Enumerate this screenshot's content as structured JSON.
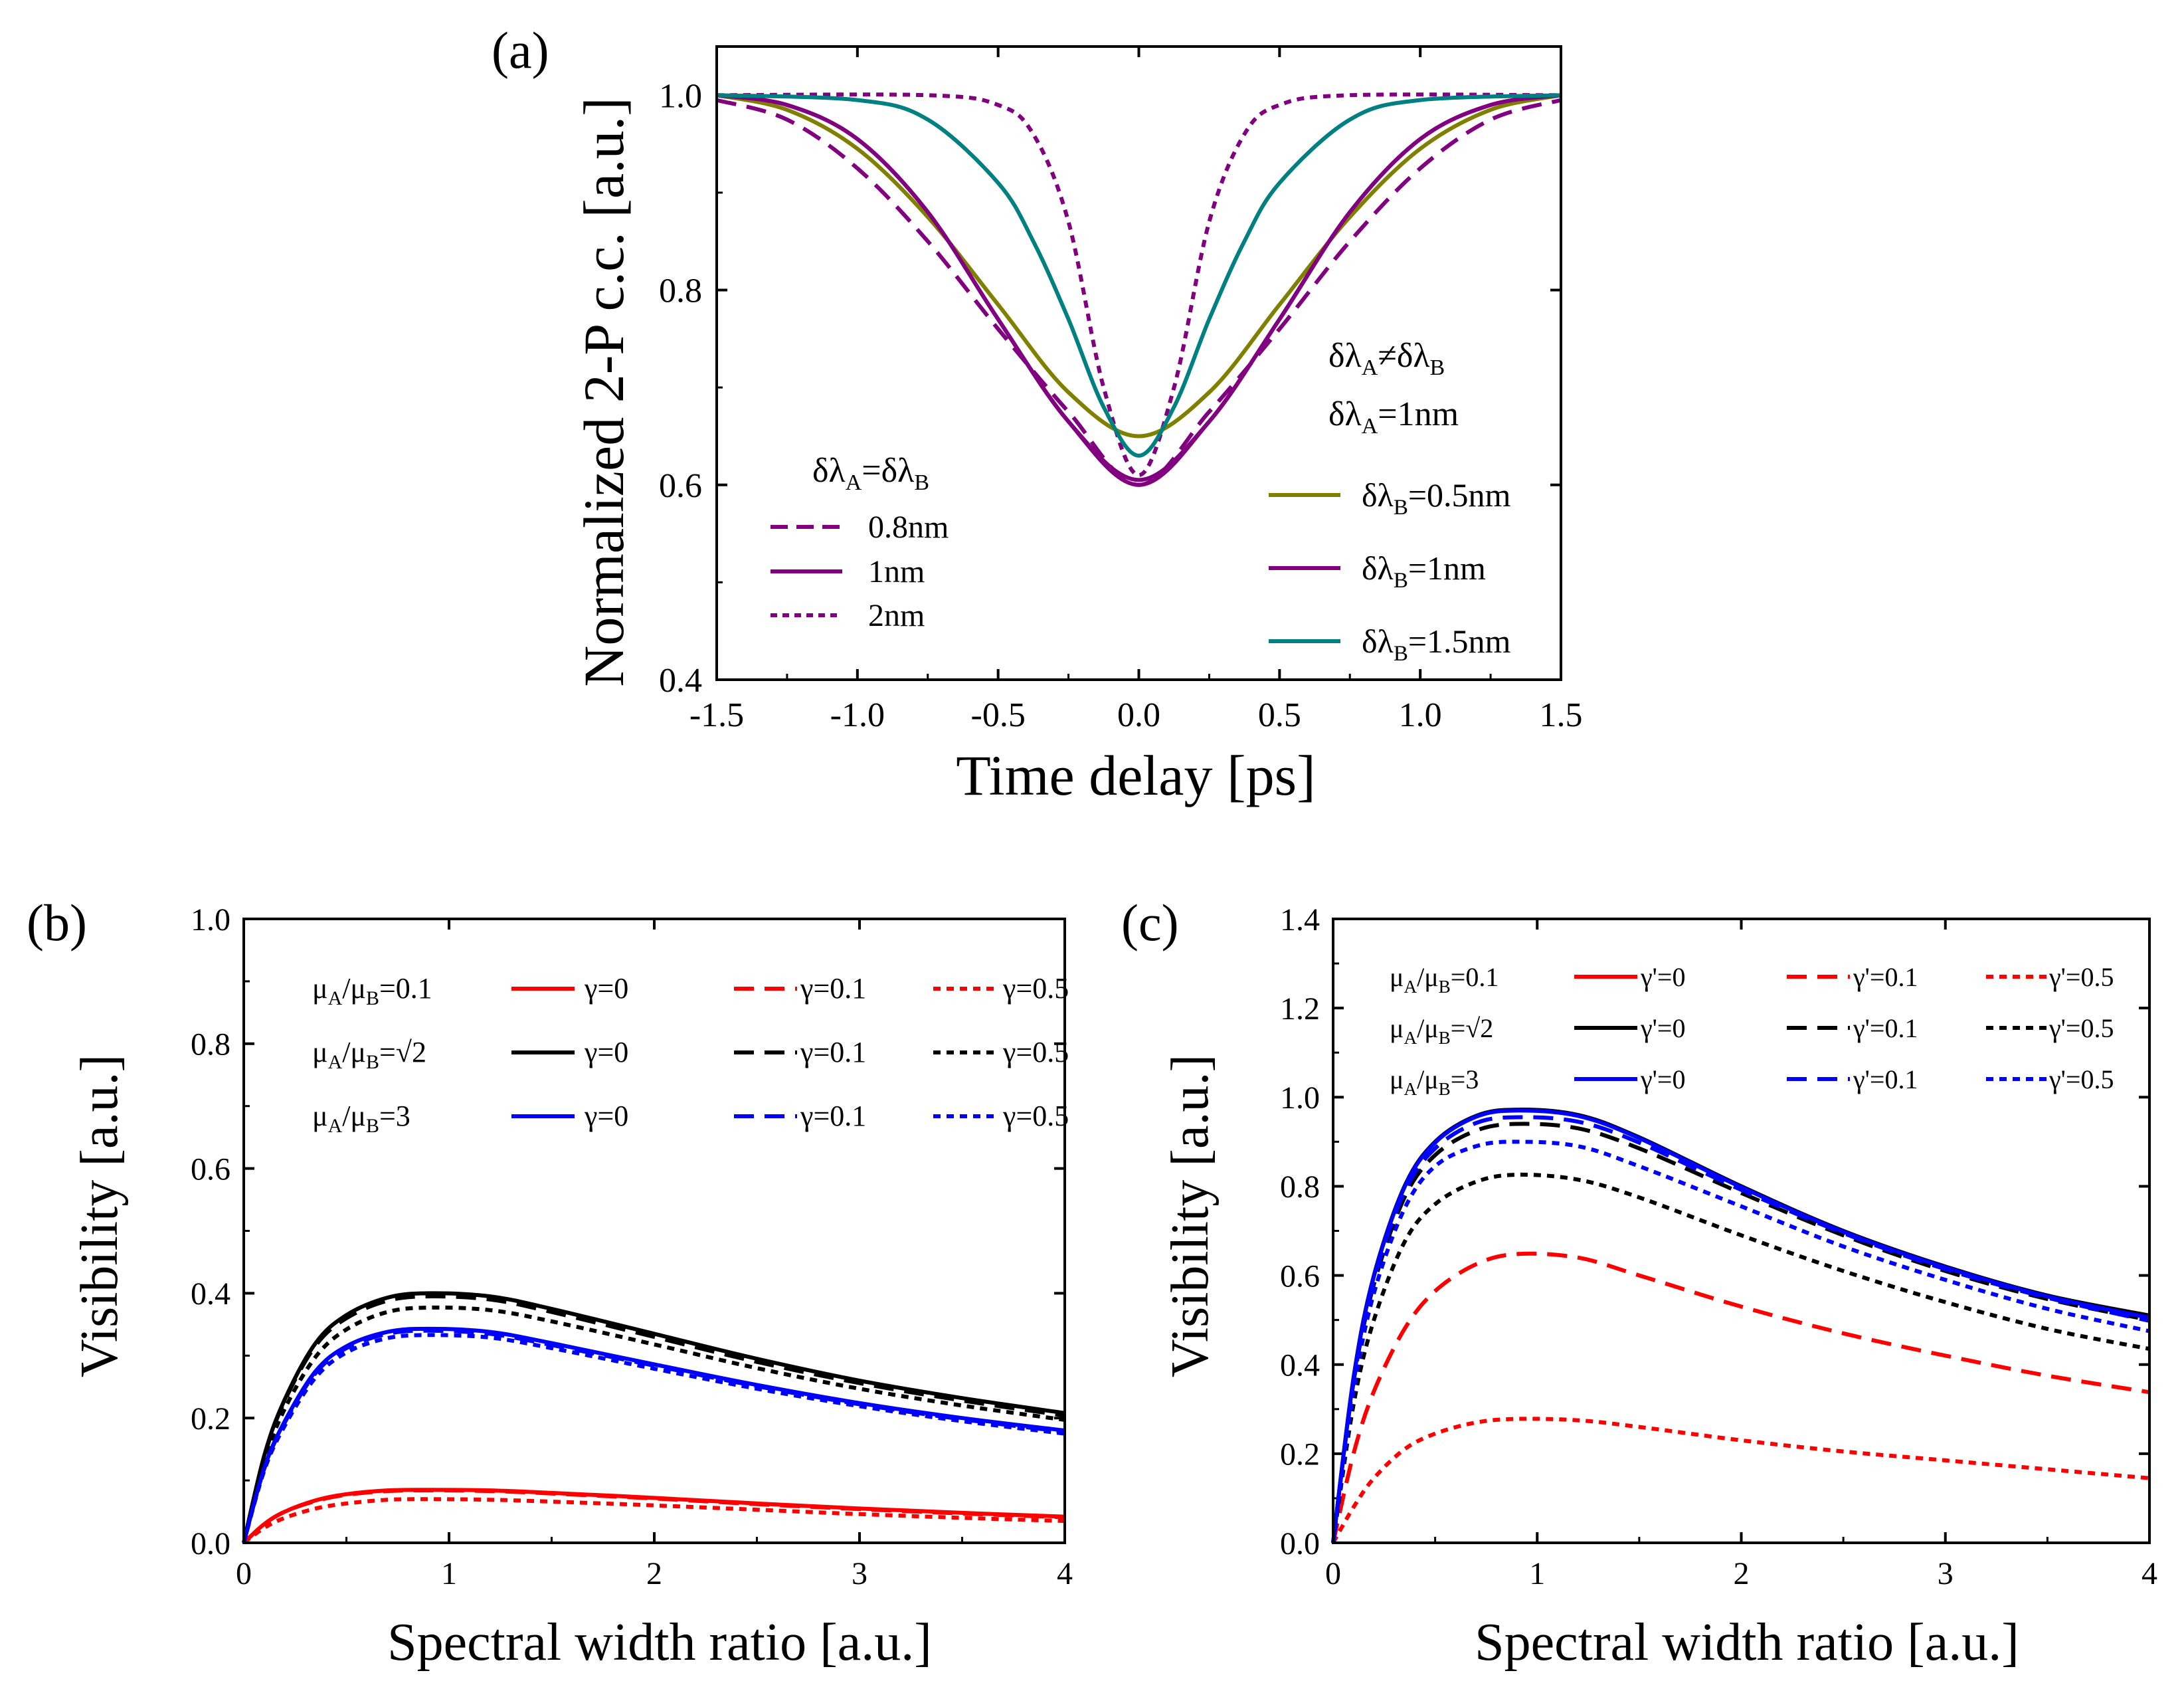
{
  "colors": {
    "purple": "#800080",
    "olive": "#808000",
    "teal": "#008080",
    "red": "#ff0000",
    "black": "#000000",
    "blue": "#0000ff"
  },
  "chart_data": [
    {
      "id": "a",
      "type": "line",
      "panel_label": "(a)",
      "xlabel": "Time delay [ps]",
      "ylabel": "Normalized 2-P c.c. [a.u.]",
      "xlim": [
        -1.5,
        1.5
      ],
      "ylim": [
        0.4,
        1.05
      ],
      "xticks": [
        -1.5,
        -1.0,
        -0.5,
        0.0,
        0.5,
        1.0,
        1.5
      ],
      "xticklabels": [
        "-1.5",
        "-1.0",
        "-0.5",
        "0.0",
        "0.5",
        "1.0",
        "1.5"
      ],
      "yticks": [
        0.4,
        0.6,
        0.8,
        1.0
      ],
      "yticklabels": [
        "0.4",
        "0.6",
        "0.8",
        "1.0"
      ],
      "legend_left_title": "δλ_A=δλ_B",
      "legend_right_title_1": "δλ_A≠δλ_B",
      "legend_right_title_2": "δλ_A=1nm",
      "series": [
        {
          "name": "0.8nm",
          "group": "left",
          "color": "#800080",
          "dash": "long",
          "x": [
            -1.5,
            -1.25,
            -1.0,
            -0.75,
            -0.5,
            -0.25,
            0.0,
            0.25,
            0.5,
            0.75,
            1.0,
            1.25,
            1.5
          ],
          "y": [
            0.995,
            0.975,
            0.925,
            0.85,
            0.76,
            0.675,
            0.6,
            0.675,
            0.76,
            0.85,
            0.925,
            0.975,
            0.995
          ]
        },
        {
          "name": "1nm",
          "group": "left",
          "color": "#800080",
          "dash": "solid",
          "x": [
            -1.5,
            -1.25,
            -1.0,
            -0.75,
            -0.5,
            -0.25,
            0.0,
            0.25,
            0.5,
            0.75,
            1.0,
            1.25,
            1.5
          ],
          "y": [
            1.0,
            0.99,
            0.955,
            0.88,
            0.77,
            0.665,
            0.6,
            0.665,
            0.77,
            0.88,
            0.955,
            0.99,
            1.0
          ]
        },
        {
          "name": "2nm",
          "group": "left",
          "color": "#800080",
          "dash": "short",
          "x": [
            -1.5,
            -0.75,
            -0.5,
            -0.375,
            -0.25,
            -0.125,
            0.0,
            0.125,
            0.25,
            0.375,
            0.5,
            0.75,
            1.5
          ],
          "y": [
            1.0,
            1.0,
            0.99,
            0.96,
            0.87,
            0.7,
            0.61,
            0.7,
            0.87,
            0.96,
            0.99,
            1.0,
            1.0
          ]
        },
        {
          "name": "δλ_B=0.5nm",
          "group": "right",
          "color": "#808000",
          "dash": "solid",
          "x": [
            -1.5,
            -1.25,
            -1.0,
            -0.75,
            -0.5,
            -0.25,
            0.0,
            0.25,
            0.5,
            0.75,
            1.0,
            1.25,
            1.5
          ],
          "y": [
            1.0,
            0.985,
            0.945,
            0.875,
            0.785,
            0.695,
            0.65,
            0.695,
            0.785,
            0.875,
            0.945,
            0.985,
            1.0
          ]
        },
        {
          "name": "δλ_B=1nm",
          "group": "right",
          "color": "#800080",
          "dash": "solid",
          "x": [
            -1.5,
            -1.25,
            -1.0,
            -0.75,
            -0.5,
            -0.25,
            0.0,
            0.25,
            0.5,
            0.75,
            1.0,
            1.25,
            1.5
          ],
          "y": [
            1.0,
            0.99,
            0.955,
            0.88,
            0.77,
            0.665,
            0.605,
            0.665,
            0.77,
            0.88,
            0.955,
            0.99,
            1.0
          ]
        },
        {
          "name": "δλ_B=1.5nm",
          "group": "right",
          "color": "#008080",
          "dash": "solid",
          "x": [
            -1.5,
            -1.0,
            -0.75,
            -0.5,
            -0.375,
            -0.25,
            -0.125,
            0.0,
            0.125,
            0.25,
            0.375,
            0.5,
            0.75,
            1.0,
            1.5
          ],
          "y": [
            1.0,
            0.995,
            0.975,
            0.91,
            0.85,
            0.77,
            0.68,
            0.63,
            0.68,
            0.77,
            0.85,
            0.91,
            0.975,
            0.995,
            1.0
          ]
        }
      ]
    },
    {
      "id": "b",
      "type": "line",
      "panel_label": "(b)",
      "xlabel": "Spectral width ratio [a.u.]",
      "ylabel": "Visibility [a.u.]",
      "xlim": [
        0,
        4
      ],
      "ylim": [
        0,
        1.0
      ],
      "xticks": [
        0,
        1,
        2,
        3,
        4
      ],
      "xticklabels": [
        "0",
        "1",
        "2",
        "3",
        "4"
      ],
      "yticks": [
        0.0,
        0.2,
        0.4,
        0.6,
        0.8,
        1.0
      ],
      "yticklabels": [
        "0.0",
        "0.2",
        "0.4",
        "0.6",
        "0.8",
        "1.0"
      ],
      "legend_rows": [
        {
          "label": "μ_A/μ_B=0.1",
          "color": "#ff0000",
          "entries": [
            "γ=0",
            "γ=0.1",
            "γ=0.5"
          ]
        },
        {
          "label": "μ_A/μ_B=√2",
          "color": "#000000",
          "entries": [
            "γ=0",
            "γ=0.1",
            "γ=0.5"
          ]
        },
        {
          "label": "μ_A/μ_B=3",
          "color": "#0000ff",
          "entries": [
            "γ=0",
            "γ=0.1",
            "γ=0.5"
          ]
        }
      ],
      "series": [
        {
          "name": "μA/μB=0.1, γ=0",
          "color": "#ff0000",
          "dash": "solid",
          "x": [
            0,
            0.1,
            0.2,
            0.35,
            0.5,
            0.7,
            0.9,
            1.2,
            1.5,
            2,
            2.5,
            3,
            3.5,
            4
          ],
          "y": [
            0,
            0.03,
            0.05,
            0.068,
            0.078,
            0.084,
            0.085,
            0.084,
            0.08,
            0.072,
            0.063,
            0.055,
            0.048,
            0.042
          ]
        },
        {
          "name": "μA/μB=0.1, γ=0.1",
          "color": "#ff0000",
          "dash": "long",
          "x": [
            0,
            0.1,
            0.2,
            0.35,
            0.5,
            0.7,
            0.9,
            1.2,
            1.5,
            2,
            2.5,
            3,
            3.5,
            4
          ],
          "y": [
            0,
            0.03,
            0.05,
            0.067,
            0.077,
            0.083,
            0.084,
            0.083,
            0.079,
            0.071,
            0.062,
            0.054,
            0.047,
            0.041
          ]
        },
        {
          "name": "μA/μB=0.1, γ=0.5",
          "color": "#ff0000",
          "dash": "short",
          "x": [
            0,
            0.1,
            0.2,
            0.35,
            0.5,
            0.7,
            0.9,
            1.2,
            1.5,
            2,
            2.5,
            3,
            3.5,
            4
          ],
          "y": [
            0,
            0.024,
            0.04,
            0.055,
            0.063,
            0.069,
            0.07,
            0.069,
            0.066,
            0.06,
            0.053,
            0.046,
            0.04,
            0.035
          ]
        },
        {
          "name": "μA/μB=√2, γ=0",
          "color": "#000000",
          "dash": "solid",
          "x": [
            0,
            0.1,
            0.2,
            0.35,
            0.5,
            0.7,
            0.9,
            1.2,
            1.5,
            2,
            2.5,
            3,
            3.5,
            4
          ],
          "y": [
            0,
            0.14,
            0.23,
            0.32,
            0.365,
            0.393,
            0.4,
            0.395,
            0.375,
            0.335,
            0.295,
            0.26,
            0.232,
            0.208
          ]
        },
        {
          "name": "μA/μB=√2, γ=0.1",
          "color": "#000000",
          "dash": "long",
          "x": [
            0,
            0.1,
            0.2,
            0.35,
            0.5,
            0.7,
            0.9,
            1.2,
            1.5,
            2,
            2.5,
            3,
            3.5,
            4
          ],
          "y": [
            0,
            0.138,
            0.228,
            0.316,
            0.36,
            0.388,
            0.395,
            0.39,
            0.37,
            0.33,
            0.29,
            0.256,
            0.228,
            0.204
          ]
        },
        {
          "name": "μA/μB=√2, γ=0.5",
          "color": "#000000",
          "dash": "short",
          "x": [
            0,
            0.1,
            0.2,
            0.35,
            0.5,
            0.7,
            0.9,
            1.2,
            1.5,
            2,
            2.5,
            3,
            3.5,
            4
          ],
          "y": [
            0,
            0.13,
            0.215,
            0.298,
            0.342,
            0.37,
            0.377,
            0.373,
            0.355,
            0.318,
            0.28,
            0.247,
            0.22,
            0.197
          ]
        },
        {
          "name": "μA/μB=3, γ=0",
          "color": "#0000ff",
          "dash": "solid",
          "x": [
            0,
            0.1,
            0.2,
            0.35,
            0.5,
            0.7,
            0.9,
            1.2,
            1.5,
            2,
            2.5,
            3,
            3.5,
            4
          ],
          "y": [
            0,
            0.12,
            0.195,
            0.275,
            0.315,
            0.338,
            0.343,
            0.338,
            0.32,
            0.286,
            0.253,
            0.224,
            0.2,
            0.18
          ]
        },
        {
          "name": "μA/μB=3, γ=0.1",
          "color": "#0000ff",
          "dash": "long",
          "x": [
            0,
            0.1,
            0.2,
            0.35,
            0.5,
            0.7,
            0.9,
            1.2,
            1.5,
            2,
            2.5,
            3,
            3.5,
            4
          ],
          "y": [
            0,
            0.119,
            0.193,
            0.272,
            0.312,
            0.335,
            0.34,
            0.335,
            0.317,
            0.284,
            0.251,
            0.222,
            0.198,
            0.178
          ]
        },
        {
          "name": "μA/μB=3, γ=0.5",
          "color": "#0000ff",
          "dash": "short",
          "x": [
            0,
            0.1,
            0.2,
            0.35,
            0.5,
            0.7,
            0.9,
            1.2,
            1.5,
            2,
            2.5,
            3,
            3.5,
            4
          ],
          "y": [
            0,
            0.116,
            0.188,
            0.265,
            0.305,
            0.328,
            0.333,
            0.329,
            0.312,
            0.279,
            0.247,
            0.219,
            0.195,
            0.175
          ]
        }
      ]
    },
    {
      "id": "c",
      "type": "line",
      "panel_label": "(c)",
      "xlabel": "Spectral width ratio [a.u.]",
      "ylabel": "Visibility [a.u.]",
      "xlim": [
        0,
        4
      ],
      "ylim": [
        0,
        1.4
      ],
      "xticks": [
        0,
        1,
        2,
        3,
        4
      ],
      "xticklabels": [
        "0",
        "1",
        "2",
        "3",
        "4"
      ],
      "yticks": [
        0.0,
        0.2,
        0.4,
        0.6,
        0.8,
        1.0,
        1.2,
        1.4
      ],
      "yticklabels": [
        "0.0",
        "0.2",
        "0.4",
        "0.6",
        "0.8",
        "1.0",
        "1.2",
        "1.4"
      ],
      "legend_rows": [
        {
          "label": "μ_A/μ_B=0.1",
          "color": "#ff0000",
          "entries": [
            "γ'=0",
            "γ'=0.1",
            "γ'=0.5"
          ]
        },
        {
          "label": "μ_A/μ_B=√2",
          "color": "#000000",
          "entries": [
            "γ'=0",
            "γ'=0.1",
            "γ'=0.5"
          ]
        },
        {
          "label": "μ_A/μ_B=3",
          "color": "#0000ff",
          "entries": [
            "γ'=0",
            "γ'=0.1",
            "γ'=0.5"
          ]
        }
      ],
      "series": [
        {
          "name": "μA/μB=0.1, γ'=0.1",
          "color": "#ff0000",
          "dash": "long",
          "x": [
            0,
            0.1,
            0.2,
            0.35,
            0.5,
            0.7,
            0.9,
            1.2,
            1.5,
            2,
            2.5,
            3,
            3.5,
            4
          ],
          "y": [
            0,
            0.2,
            0.34,
            0.48,
            0.565,
            0.625,
            0.648,
            0.64,
            0.6,
            0.53,
            0.47,
            0.42,
            0.375,
            0.338
          ]
        },
        {
          "name": "μA/μB=0.1, γ'=0.5",
          "color": "#ff0000",
          "dash": "short",
          "x": [
            0,
            0.1,
            0.2,
            0.35,
            0.5,
            0.7,
            0.9,
            1.2,
            1.5,
            2,
            2.5,
            3,
            3.5,
            4
          ],
          "y": [
            0,
            0.08,
            0.145,
            0.21,
            0.245,
            0.27,
            0.278,
            0.275,
            0.26,
            0.23,
            0.205,
            0.185,
            0.165,
            0.145
          ]
        },
        {
          "name": "μA/μB=√2, γ'=0",
          "color": "#000000",
          "dash": "solid",
          "x": [
            0,
            0.1,
            0.2,
            0.35,
            0.5,
            0.7,
            0.9,
            1.2,
            1.5,
            2,
            2.5,
            3,
            3.5,
            4
          ],
          "y": [
            0,
            0.37,
            0.6,
            0.8,
            0.9,
            0.958,
            0.972,
            0.96,
            0.91,
            0.8,
            0.7,
            0.62,
            0.555,
            0.51
          ]
        },
        {
          "name": "μA/μB=√2, γ'=0.1",
          "color": "#000000",
          "dash": "long",
          "x": [
            0,
            0.1,
            0.2,
            0.35,
            0.5,
            0.7,
            0.9,
            1.2,
            1.5,
            2,
            2.5,
            3,
            3.5,
            4
          ],
          "y": [
            0,
            0.36,
            0.58,
            0.775,
            0.87,
            0.925,
            0.94,
            0.93,
            0.885,
            0.785,
            0.69,
            0.61,
            0.547,
            0.5
          ]
        },
        {
          "name": "μA/μB=√2, γ'=0.5",
          "color": "#000000",
          "dash": "short",
          "x": [
            0,
            0.1,
            0.2,
            0.35,
            0.5,
            0.7,
            0.9,
            1.2,
            1.5,
            2,
            2.5,
            3,
            3.5,
            4
          ],
          "y": [
            0,
            0.31,
            0.5,
            0.675,
            0.76,
            0.81,
            0.826,
            0.815,
            0.775,
            0.69,
            0.61,
            0.54,
            0.48,
            0.435
          ]
        },
        {
          "name": "μA/μB=3, γ'=0",
          "color": "#0000ff",
          "dash": "solid",
          "x": [
            0,
            0.1,
            0.2,
            0.35,
            0.5,
            0.7,
            0.9,
            1.2,
            1.5,
            2,
            2.5,
            3,
            3.5,
            4
          ],
          "y": [
            0,
            0.368,
            0.598,
            0.798,
            0.898,
            0.956,
            0.97,
            0.958,
            0.908,
            0.798,
            0.698,
            0.618,
            0.553,
            0.505
          ]
        },
        {
          "name": "μA/μB=3, γ'=0.1",
          "color": "#0000ff",
          "dash": "long",
          "x": [
            0,
            0.1,
            0.2,
            0.35,
            0.5,
            0.7,
            0.9,
            1.2,
            1.5,
            2,
            2.5,
            3,
            3.5,
            4
          ],
          "y": [
            0,
            0.362,
            0.59,
            0.788,
            0.885,
            0.942,
            0.955,
            0.945,
            0.898,
            0.792,
            0.695,
            0.614,
            0.55,
            0.498
          ]
        },
        {
          "name": "μA/μB=3, γ'=0.5",
          "color": "#0000ff",
          "dash": "short",
          "x": [
            0,
            0.1,
            0.2,
            0.35,
            0.5,
            0.7,
            0.9,
            1.2,
            1.5,
            2,
            2.5,
            3,
            3.5,
            4
          ],
          "y": [
            0,
            0.34,
            0.56,
            0.75,
            0.845,
            0.89,
            0.9,
            0.89,
            0.845,
            0.755,
            0.665,
            0.59,
            0.525,
            0.475
          ]
        }
      ]
    }
  ]
}
